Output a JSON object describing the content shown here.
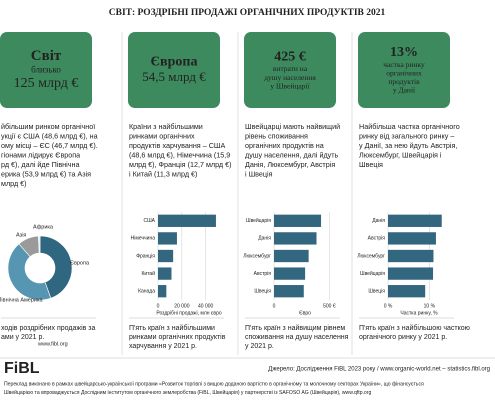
{
  "title": "СВІТ: РОЗДРІБНІ ПРОДАЖІ ОРГАНІЧНИХ ПРОДУКТІВ 2021",
  "columns": [
    {
      "header": [
        "Світ",
        "близько",
        "125 млрд €"
      ],
      "body": [
        "йбільшим ринком органічної",
        "укції є США (48,6 млрд €), на",
        "ому місці – ЄС (46,7 млрд €).",
        "гіонами лідирує Європа",
        "рд €), далі йде Північна",
        "ерика (53,9 млрд €) та Азія",
        "млрд €)"
      ],
      "caption": [
        "ходів роздрібних продажів за",
        "ами у 2021 р."
      ]
    },
    {
      "header": [
        "Європа",
        "54,5 млрд €"
      ],
      "body": [
        "Країни з найбільшими",
        "ринками органічних",
        "продуктів харчування – США",
        "(48,6 млрд €), Німеччина (15,9",
        "млрд €), Франція (12,7 млрд €)",
        "і Китай (11,3 млрд €)"
      ],
      "caption": [
        "П'ять країн з найбільшими",
        "ринками органічних продуктів",
        "харчування у 2021 р."
      ]
    },
    {
      "header": [
        "425 €",
        "витрати на",
        "душу населення",
        "у Швейцарії"
      ],
      "body": [
        "Швейцарці мають найвищий",
        "рівень споживання",
        "органічних продуктів на",
        "душу населення, далі йдуть",
        "Данія, Люксембург, Австрія",
        "і Швеція"
      ],
      "caption": [
        "П'ять країн з найвищим рівнем",
        "споживання на душу населення",
        "у 2021 р."
      ]
    },
    {
      "header": [
        "13%",
        "частка ринку",
        "органічних",
        "продуктів",
        "у Данії"
      ],
      "body": [
        "Найбільша частка органічного",
        "ринку від загального ринку –",
        "у Данії, за нею йдуть Австрія,",
        "Люксембург, Швейцарія і",
        "Швеція"
      ],
      "caption": [
        "П'ять країн з найбільшою часткою",
        "органічного ринку у 2021 р."
      ]
    }
  ],
  "website": "www.fibl.org",
  "logo": "FiBL",
  "source": "Джерело: Дослідження FiBL 2023 року / www.organic-world.net – statistics.fibl.org",
  "footnote": [
    "Переклад виконано в рамках швейцарсько-української програми «Розвиток торгівлі з вищою доданою вартістю в органічному та молочному секторах України», що фінансується",
    "Швейцарією та впроваджується Дослідним інститутом органічного землеробства (FiBL, Швейцарія) у партнерстві із SAFOSO AG (Швейцарія), www.qftp.org"
  ],
  "chart_data": [
    {
      "type": "pie",
      "categories": [
        "Європа",
        "Північна Америка",
        "Азія",
        "Африка"
      ],
      "values": [
        54.5,
        53.9,
        13,
        1
      ],
      "colors": [
        "#2f6680",
        "#5796b3",
        "#9a9a9a",
        "#dde7eb"
      ]
    },
    {
      "type": "bar",
      "categories": [
        "США",
        "Німеччина",
        "Франція",
        "Китай",
        "Канада"
      ],
      "values": [
        48600,
        15900,
        12700,
        11300,
        7000
      ],
      "color": "#33677f",
      "xlim": [
        0,
        52000
      ],
      "xticks": [
        0,
        {
          "value": 20000,
          "label": "20 000"
        },
        {
          "value": 40000,
          "label": "40 000"
        }
      ],
      "xlabel": "Роздрібні продажі, млн євро"
    },
    {
      "type": "bar",
      "categories": [
        "Швейцарія",
        "Данія",
        "Люксембург",
        "Австрія",
        "Швеція"
      ],
      "values": [
        425,
        384,
        313,
        281,
        269
      ],
      "color": "#33677f",
      "xlim": [
        0,
        560
      ],
      "xticks": [
        0,
        {
          "value": 500,
          "label": "500 €"
        }
      ],
      "xlabel": "Євро"
    },
    {
      "type": "bar",
      "categories": [
        "Данія",
        "Австрія",
        "Люксембург",
        "Швейцарія",
        "Швеція"
      ],
      "values": [
        13,
        11.6,
        11,
        10.9,
        9
      ],
      "color": "#33677f",
      "xlim": [
        0,
        15
      ],
      "xticks": [
        {
          "value": 0,
          "label": "0 %"
        },
        {
          "value": 10,
          "label": "10 %"
        }
      ],
      "xlabel": "Частка ринку, %"
    }
  ]
}
